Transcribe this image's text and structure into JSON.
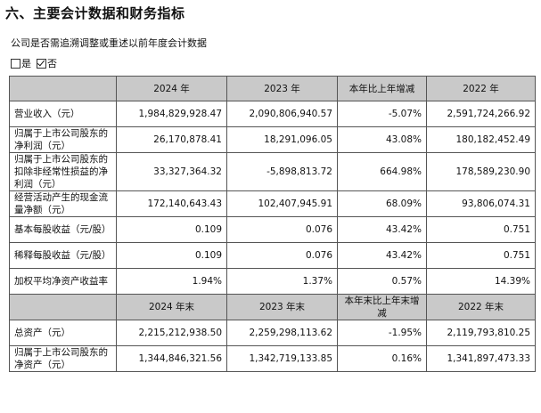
{
  "title": "六、主要会计数据和财务指标",
  "question": "公司是否需追溯调整或重述以前年度会计数据",
  "options": [
    {
      "label": "是",
      "checked": false
    },
    {
      "label": "否",
      "checked": true
    }
  ],
  "table1": {
    "headers": [
      "",
      "2024 年",
      "2023 年",
      "本年比上年增减",
      "2022 年"
    ],
    "rows": [
      {
        "label": "营业收入（元）",
        "v2024": "1,984,829,928.47",
        "v2023": "2,090,806,940.57",
        "change": "-5.07%",
        "v2022": "2,591,724,266.92"
      },
      {
        "label": "归属于上市公司股东的净利润（元）",
        "v2024": "26,170,878.41",
        "v2023": "18,291,096.05",
        "change": "43.08%",
        "v2022": "180,182,452.49"
      },
      {
        "label": "归属于上市公司股东的扣除非经常性损益的净利润（元）",
        "v2024": "33,327,364.32",
        "v2023": "-5,898,813.72",
        "change": "664.98%",
        "v2022": "178,589,230.90"
      },
      {
        "label": "经营活动产生的现金流量净额（元）",
        "v2024": "172,140,643.43",
        "v2023": "102,407,945.91",
        "change": "68.09%",
        "v2022": "93,806,074.31"
      },
      {
        "label": "基本每股收益（元/股）",
        "v2024": "0.109",
        "v2023": "0.076",
        "change": "43.42%",
        "v2022": "0.751"
      },
      {
        "label": "稀释每股收益（元/股）",
        "v2024": "0.109",
        "v2023": "0.076",
        "change": "43.42%",
        "v2022": "0.751"
      },
      {
        "label": "加权平均净资产收益率",
        "v2024": "1.94%",
        "v2023": "1.37%",
        "change": "0.57%",
        "v2022": "14.39%"
      }
    ]
  },
  "table2": {
    "headers": [
      "",
      "2024 年末",
      "2023 年末",
      "本年末比上年末增减",
      "2022 年末"
    ],
    "rows": [
      {
        "label": "总资产（元）",
        "v2024": "2,215,212,938.50",
        "v2023": "2,259,298,113.62",
        "change": "-1.95%",
        "v2022": "2,119,793,810.25"
      },
      {
        "label": "归属于上市公司股东的净资产（元）",
        "v2024": "1,344,846,321.56",
        "v2023": "1,342,719,133.85",
        "change": "0.16%",
        "v2022": "1,341,897,473.33"
      }
    ]
  }
}
